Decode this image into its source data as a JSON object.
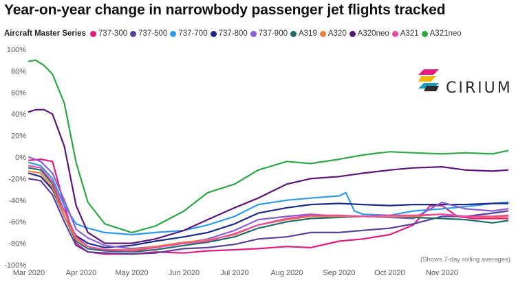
{
  "title": "Year-on-year change in narrowbody passenger jet flights tracked",
  "legend_title": "Aircraft Master Series",
  "note": "(Shows 7-day rolling averages)",
  "brand": "CIRIUM",
  "chart_data": {
    "type": "line",
    "title": "Year-on-year change in narrowbody passenger jet flights tracked",
    "xlabel": "",
    "ylabel": "",
    "x_range": [
      "2020-03-01",
      "2020-12-10"
    ],
    "x_ticks": [
      {
        "label": "Mar 2020",
        "date": "2020-03-01"
      },
      {
        "label": "Apr 2020",
        "date": "2020-04-01"
      },
      {
        "label": "May 2020",
        "date": "2020-05-01"
      },
      {
        "label": "Jun 2020",
        "date": "2020-06-01"
      },
      {
        "label": "Jul 2020",
        "date": "2020-07-01"
      },
      {
        "label": "Aug 2020",
        "date": "2020-08-01"
      },
      {
        "label": "Sep 2020",
        "date": "2020-09-01"
      },
      {
        "label": "Oct 2020",
        "date": "2020-10-01"
      },
      {
        "label": "Nov 2020",
        "date": "2020-11-01"
      }
    ],
    "ylim": [
      -100,
      100
    ],
    "y_ticks": [
      100,
      80,
      60,
      40,
      20,
      0,
      -20,
      -40,
      -60,
      -80,
      -100
    ],
    "y_tick_labels": [
      "100%",
      "80%",
      "60%",
      "40%",
      "20%",
      "0%",
      "-20%",
      "-40%",
      "-60%",
      "-80%",
      "-100%"
    ],
    "grid": false,
    "legend_position": "top",
    "series": [
      {
        "name": "737-300",
        "color": "#e6197f",
        "points": [
          [
            "2020-03-01",
            -3
          ],
          [
            "2020-03-08",
            -2
          ],
          [
            "2020-03-15",
            -4
          ],
          [
            "2020-03-22",
            -45
          ],
          [
            "2020-03-29",
            -80
          ],
          [
            "2020-04-05",
            -88
          ],
          [
            "2020-04-15",
            -90
          ],
          [
            "2020-05-01",
            -90
          ],
          [
            "2020-05-15",
            -88
          ],
          [
            "2020-06-01",
            -89
          ],
          [
            "2020-06-15",
            -87
          ],
          [
            "2020-07-01",
            -86
          ],
          [
            "2020-07-15",
            -85
          ],
          [
            "2020-08-01",
            -83
          ],
          [
            "2020-08-15",
            -84
          ],
          [
            "2020-09-01",
            -78
          ],
          [
            "2020-09-15",
            -76
          ],
          [
            "2020-10-01",
            -72
          ],
          [
            "2020-10-15",
            -63
          ],
          [
            "2020-10-25",
            -45
          ],
          [
            "2020-11-01",
            -45
          ],
          [
            "2020-11-10",
            -55
          ],
          [
            "2020-11-20",
            -57
          ],
          [
            "2020-12-01",
            -57
          ],
          [
            "2020-12-10",
            -57
          ]
        ]
      },
      {
        "name": "737-500",
        "color": "#5b3e9c",
        "points": [
          [
            "2020-03-01",
            -20
          ],
          [
            "2020-03-08",
            -22
          ],
          [
            "2020-03-15",
            -35
          ],
          [
            "2020-03-22",
            -60
          ],
          [
            "2020-03-29",
            -82
          ],
          [
            "2020-04-05",
            -88
          ],
          [
            "2020-04-15",
            -89
          ],
          [
            "2020-05-01",
            -90
          ],
          [
            "2020-05-15",
            -89
          ],
          [
            "2020-06-01",
            -85
          ],
          [
            "2020-06-15",
            -84
          ],
          [
            "2020-07-01",
            -81
          ],
          [
            "2020-07-15",
            -76
          ],
          [
            "2020-08-01",
            -74
          ],
          [
            "2020-08-15",
            -70
          ],
          [
            "2020-09-01",
            -70
          ],
          [
            "2020-09-15",
            -68
          ],
          [
            "2020-10-01",
            -66
          ],
          [
            "2020-10-15",
            -62
          ],
          [
            "2020-11-01",
            -55
          ],
          [
            "2020-11-15",
            -55
          ],
          [
            "2020-12-01",
            -52
          ],
          [
            "2020-12-10",
            -50
          ]
        ]
      },
      {
        "name": "737-700",
        "color": "#2b9af0",
        "points": [
          [
            "2020-03-01",
            -5
          ],
          [
            "2020-03-08",
            -8
          ],
          [
            "2020-03-15",
            -20
          ],
          [
            "2020-03-22",
            -45
          ],
          [
            "2020-03-29",
            -62
          ],
          [
            "2020-04-05",
            -66
          ],
          [
            "2020-04-15",
            -70
          ],
          [
            "2020-05-01",
            -72
          ],
          [
            "2020-05-15",
            -70
          ],
          [
            "2020-06-01",
            -68
          ],
          [
            "2020-06-15",
            -63
          ],
          [
            "2020-07-01",
            -55
          ],
          [
            "2020-07-15",
            -44
          ],
          [
            "2020-08-01",
            -40
          ],
          [
            "2020-08-15",
            -38
          ],
          [
            "2020-09-01",
            -36
          ],
          [
            "2020-09-05",
            -33
          ],
          [
            "2020-09-10",
            -50
          ],
          [
            "2020-09-15",
            -53
          ],
          [
            "2020-10-01",
            -54
          ],
          [
            "2020-10-15",
            -50
          ],
          [
            "2020-11-01",
            -48
          ],
          [
            "2020-11-15",
            -46
          ],
          [
            "2020-12-01",
            -43
          ],
          [
            "2020-12-10",
            -42
          ]
        ]
      },
      {
        "name": "737-800",
        "color": "#1a2a8a",
        "points": [
          [
            "2020-03-01",
            -15
          ],
          [
            "2020-03-08",
            -18
          ],
          [
            "2020-03-15",
            -30
          ],
          [
            "2020-03-22",
            -55
          ],
          [
            "2020-03-29",
            -73
          ],
          [
            "2020-04-05",
            -80
          ],
          [
            "2020-04-15",
            -84
          ],
          [
            "2020-05-01",
            -82
          ],
          [
            "2020-05-15",
            -78
          ],
          [
            "2020-06-01",
            -74
          ],
          [
            "2020-06-15",
            -70
          ],
          [
            "2020-07-01",
            -62
          ],
          [
            "2020-07-15",
            -52
          ],
          [
            "2020-08-01",
            -47
          ],
          [
            "2020-08-15",
            -44
          ],
          [
            "2020-09-01",
            -43
          ],
          [
            "2020-09-15",
            -44
          ],
          [
            "2020-10-01",
            -45
          ],
          [
            "2020-10-15",
            -44
          ],
          [
            "2020-11-01",
            -44
          ],
          [
            "2020-11-15",
            -44
          ],
          [
            "2020-12-01",
            -43
          ],
          [
            "2020-12-10",
            -43
          ]
        ]
      },
      {
        "name": "737-900",
        "color": "#8a5fd6",
        "points": [
          [
            "2020-03-01",
            0
          ],
          [
            "2020-03-08",
            -4
          ],
          [
            "2020-03-15",
            -15
          ],
          [
            "2020-03-22",
            -40
          ],
          [
            "2020-03-29",
            -67
          ],
          [
            "2020-04-05",
            -75
          ],
          [
            "2020-04-15",
            -82
          ],
          [
            "2020-05-01",
            -85
          ],
          [
            "2020-05-15",
            -83
          ],
          [
            "2020-06-01",
            -80
          ],
          [
            "2020-06-15",
            -76
          ],
          [
            "2020-07-01",
            -68
          ],
          [
            "2020-07-15",
            -58
          ],
          [
            "2020-08-01",
            -55
          ],
          [
            "2020-08-15",
            -53
          ],
          [
            "2020-09-01",
            -55
          ],
          [
            "2020-09-15",
            -55
          ],
          [
            "2020-10-01",
            -56
          ],
          [
            "2020-10-15",
            -57
          ],
          [
            "2020-11-01",
            -42
          ],
          [
            "2020-11-15",
            -48
          ],
          [
            "2020-12-01",
            -50
          ],
          [
            "2020-12-10",
            -48
          ]
        ]
      },
      {
        "name": "A319",
        "color": "#1f6b6b",
        "points": [
          [
            "2020-03-01",
            -10
          ],
          [
            "2020-03-08",
            -12
          ],
          [
            "2020-03-15",
            -25
          ],
          [
            "2020-03-22",
            -55
          ],
          [
            "2020-03-29",
            -78
          ],
          [
            "2020-04-05",
            -85
          ],
          [
            "2020-04-15",
            -87
          ],
          [
            "2020-05-01",
            -88
          ],
          [
            "2020-05-15",
            -86
          ],
          [
            "2020-06-01",
            -82
          ],
          [
            "2020-06-15",
            -79
          ],
          [
            "2020-07-01",
            -74
          ],
          [
            "2020-07-15",
            -66
          ],
          [
            "2020-08-01",
            -60
          ],
          [
            "2020-08-15",
            -57
          ],
          [
            "2020-09-01",
            -56
          ],
          [
            "2020-09-15",
            -55
          ],
          [
            "2020-10-01",
            -55
          ],
          [
            "2020-10-15",
            -56
          ],
          [
            "2020-11-01",
            -57
          ],
          [
            "2020-11-15",
            -58
          ],
          [
            "2020-12-01",
            -61
          ],
          [
            "2020-12-10",
            -59
          ]
        ]
      },
      {
        "name": "A320",
        "color": "#f07d3a",
        "points": [
          [
            "2020-03-01",
            -13
          ],
          [
            "2020-03-08",
            -15
          ],
          [
            "2020-03-15",
            -28
          ],
          [
            "2020-03-22",
            -55
          ],
          [
            "2020-03-29",
            -76
          ],
          [
            "2020-04-05",
            -83
          ],
          [
            "2020-04-15",
            -86
          ],
          [
            "2020-05-01",
            -86
          ],
          [
            "2020-05-15",
            -83
          ],
          [
            "2020-06-01",
            -79
          ],
          [
            "2020-06-15",
            -77
          ],
          [
            "2020-07-01",
            -72
          ],
          [
            "2020-07-15",
            -63
          ],
          [
            "2020-08-01",
            -58
          ],
          [
            "2020-08-15",
            -55
          ],
          [
            "2020-09-01",
            -55
          ],
          [
            "2020-09-15",
            -55
          ],
          [
            "2020-10-01",
            -55
          ],
          [
            "2020-10-15",
            -55
          ],
          [
            "2020-11-01",
            -53
          ],
          [
            "2020-11-15",
            -55
          ],
          [
            "2020-12-01",
            -56
          ],
          [
            "2020-12-10",
            -55
          ]
        ]
      },
      {
        "name": "A320neo",
        "color": "#5b157a",
        "points": [
          [
            "2020-03-01",
            42
          ],
          [
            "2020-03-05",
            44
          ],
          [
            "2020-03-10",
            44
          ],
          [
            "2020-03-15",
            40
          ],
          [
            "2020-03-22",
            10
          ],
          [
            "2020-03-29",
            -45
          ],
          [
            "2020-04-05",
            -70
          ],
          [
            "2020-04-15",
            -80
          ],
          [
            "2020-05-01",
            -80
          ],
          [
            "2020-05-15",
            -76
          ],
          [
            "2020-06-01",
            -68
          ],
          [
            "2020-06-15",
            -58
          ],
          [
            "2020-07-01",
            -47
          ],
          [
            "2020-07-15",
            -38
          ],
          [
            "2020-08-01",
            -25
          ],
          [
            "2020-08-15",
            -20
          ],
          [
            "2020-09-01",
            -18
          ],
          [
            "2020-09-15",
            -15
          ],
          [
            "2020-10-01",
            -12
          ],
          [
            "2020-10-15",
            -10
          ],
          [
            "2020-11-01",
            -9
          ],
          [
            "2020-11-15",
            -12
          ],
          [
            "2020-12-01",
            -13
          ],
          [
            "2020-12-10",
            -12
          ]
        ]
      },
      {
        "name": "A321",
        "color": "#e84aa5",
        "points": [
          [
            "2020-03-01",
            -8
          ],
          [
            "2020-03-08",
            -10
          ],
          [
            "2020-03-15",
            -23
          ],
          [
            "2020-03-22",
            -50
          ],
          [
            "2020-03-29",
            -74
          ],
          [
            "2020-04-05",
            -83
          ],
          [
            "2020-04-15",
            -86
          ],
          [
            "2020-05-01",
            -87
          ],
          [
            "2020-05-15",
            -84
          ],
          [
            "2020-06-01",
            -80
          ],
          [
            "2020-06-15",
            -78
          ],
          [
            "2020-07-01",
            -71
          ],
          [
            "2020-07-15",
            -63
          ],
          [
            "2020-08-01",
            -57
          ],
          [
            "2020-08-15",
            -54
          ],
          [
            "2020-09-01",
            -54
          ],
          [
            "2020-09-15",
            -55
          ],
          [
            "2020-10-01",
            -54
          ],
          [
            "2020-10-15",
            -54
          ],
          [
            "2020-11-01",
            -53
          ],
          [
            "2020-11-15",
            -55
          ],
          [
            "2020-12-01",
            -55
          ],
          [
            "2020-12-10",
            -54
          ]
        ]
      },
      {
        "name": "A321neo",
        "color": "#2aa842",
        "points": [
          [
            "2020-03-01",
            89
          ],
          [
            "2020-03-05",
            90
          ],
          [
            "2020-03-10",
            85
          ],
          [
            "2020-03-15",
            77
          ],
          [
            "2020-03-22",
            50
          ],
          [
            "2020-03-29",
            -5
          ],
          [
            "2020-04-05",
            -42
          ],
          [
            "2020-04-15",
            -62
          ],
          [
            "2020-05-01",
            -70
          ],
          [
            "2020-05-15",
            -64
          ],
          [
            "2020-06-01",
            -50
          ],
          [
            "2020-06-15",
            -33
          ],
          [
            "2020-07-01",
            -25
          ],
          [
            "2020-07-15",
            -12
          ],
          [
            "2020-08-01",
            -4
          ],
          [
            "2020-08-15",
            -6
          ],
          [
            "2020-09-01",
            -2
          ],
          [
            "2020-09-15",
            2
          ],
          [
            "2020-10-01",
            5
          ],
          [
            "2020-10-15",
            4
          ],
          [
            "2020-11-01",
            3
          ],
          [
            "2020-11-15",
            4
          ],
          [
            "2020-12-01",
            3
          ],
          [
            "2020-12-10",
            6
          ]
        ]
      }
    ]
  }
}
